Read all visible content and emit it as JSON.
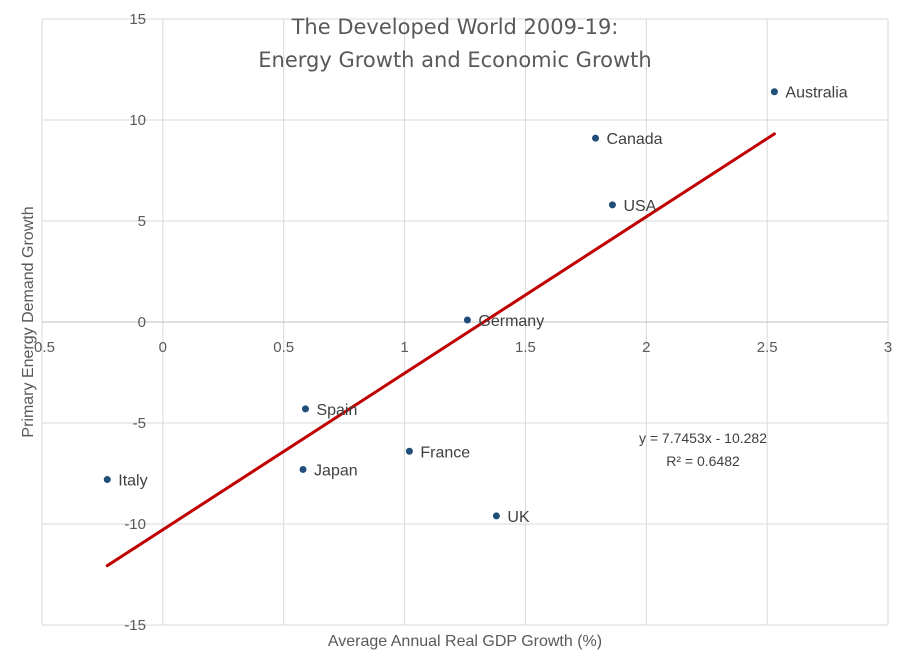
{
  "chart_data": {
    "type": "scatter",
    "title_lines": [
      "The Developed World 2009-19:",
      "Energy Growth and Economic Growth"
    ],
    "xlabel": "Average  Annual Real GDP Growth (%)",
    "ylabel": "Primary Energy Demand Growth",
    "xlim": [
      -0.5,
      3
    ],
    "ylim": [
      -15,
      15
    ],
    "x_ticks": [
      -0.5,
      0,
      0.5,
      1,
      1.5,
      2,
      2.5,
      3
    ],
    "x_tick_labels": [
      "-0.5",
      "0",
      "0.5",
      "1",
      "1.5",
      "2",
      "2.5",
      "3"
    ],
    "y_ticks": [
      -15,
      -10,
      -5,
      0,
      5,
      10,
      15
    ],
    "y_tick_labels": [
      "-15",
      "-10",
      "-5",
      "0",
      "5",
      "10",
      "15"
    ],
    "grid": true,
    "points": [
      {
        "label": "Australia",
        "x": 2.53,
        "y": 11.4
      },
      {
        "label": "Canada",
        "x": 1.79,
        "y": 9.1
      },
      {
        "label": "USA",
        "x": 1.86,
        "y": 5.8
      },
      {
        "label": "Germany",
        "x": 1.26,
        "y": 0.1
      },
      {
        "label": "Spain",
        "x": 0.59,
        "y": -4.3
      },
      {
        "label": "France",
        "x": 1.02,
        "y": -6.4
      },
      {
        "label": "Japan",
        "x": 0.58,
        "y": -7.3
      },
      {
        "label": "Italy",
        "x": -0.23,
        "y": -7.8
      },
      {
        "label": "UK",
        "x": 1.38,
        "y": -9.6
      }
    ],
    "trendline": {
      "slope": 7.7453,
      "intercept": -10.282,
      "x_range": [
        -0.23,
        2.53
      ],
      "equation": "y = 7.7453x - 10.282",
      "r_squared": "R² = 0.6482"
    },
    "colors": {
      "points": "#1f4e79",
      "trendline": "#c00000",
      "grid": "#d9d9d9"
    }
  }
}
